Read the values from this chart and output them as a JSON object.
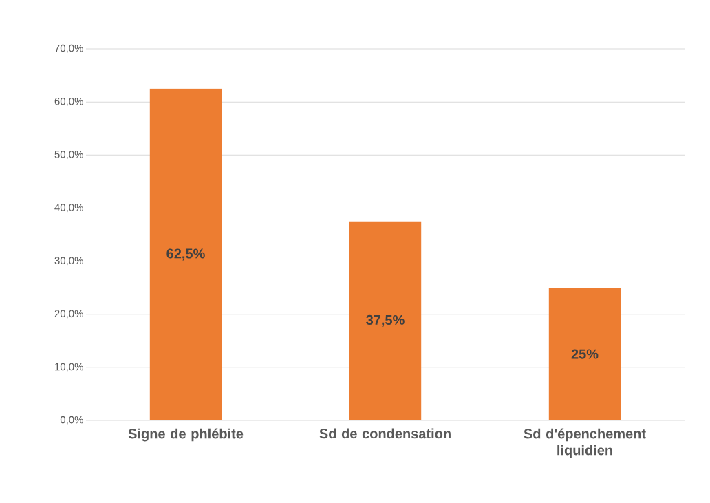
{
  "chart_data": {
    "type": "bar",
    "categories": [
      "Signe de phlébite",
      "Sd de condensation",
      "Sd d'épenchement liquidien"
    ],
    "values": [
      62.5,
      37.5,
      25
    ],
    "value_labels": [
      "62,5%",
      "37,5%",
      "25%"
    ],
    "color": "#ed7d31",
    "ylim": [
      0,
      70
    ],
    "yticks": [
      {
        "value": 0,
        "label": "0,0%"
      },
      {
        "value": 10,
        "label": "10,0%"
      },
      {
        "value": 20,
        "label": "20,0%"
      },
      {
        "value": 30,
        "label": "30,0%"
      },
      {
        "value": 40,
        "label": "40,0%"
      },
      {
        "value": 50,
        "label": "50,0%"
      },
      {
        "value": 60,
        "label": "60,0%"
      },
      {
        "value": 70,
        "label": "70,0%"
      }
    ],
    "grid": true
  }
}
